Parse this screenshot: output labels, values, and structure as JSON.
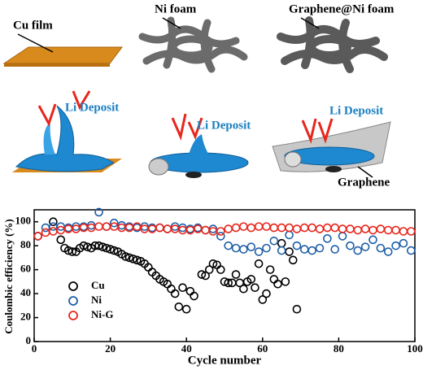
{
  "illustration": {
    "labels": [
      "Cu film",
      "Ni foam",
      "Graphene@Ni foam",
      "Li Deposit",
      "Li Deposit",
      "Li Deposit",
      "Graphene"
    ]
  },
  "chart_data": {
    "type": "scatter",
    "xlabel": "Cycle number",
    "ylabel": "Coulombic efficiency (%)",
    "xlim": [
      0,
      100
    ],
    "ylim": [
      0,
      110
    ],
    "xticks": [
      0,
      20,
      40,
      60,
      80,
      100
    ],
    "yticks": [
      0,
      20,
      40,
      60,
      80,
      100
    ],
    "legend": "lower-left",
    "series": [
      {
        "name": "Cu",
        "color": "#000000",
        "x": [
          1,
          5,
          7,
          8,
          9,
          10,
          11,
          12,
          13,
          14,
          15,
          16,
          17,
          18,
          19,
          20,
          21,
          22,
          23,
          24,
          25,
          26,
          27,
          28,
          29,
          30,
          31,
          32,
          33,
          34,
          35,
          36,
          37,
          38,
          39,
          40,
          41,
          42,
          44,
          45,
          46,
          47,
          48,
          49,
          50,
          51,
          52,
          53,
          54,
          55,
          56,
          57,
          58,
          59,
          60,
          61,
          62,
          63,
          64,
          65,
          66,
          67,
          68,
          69
        ],
        "values": [
          88,
          100,
          85,
          78,
          76,
          75,
          75,
          78,
          80,
          79,
          78,
          80,
          80,
          79,
          78,
          77,
          76,
          75,
          73,
          71,
          70,
          69,
          68,
          67,
          65,
          62,
          58,
          55,
          52,
          50,
          48,
          44,
          40,
          29,
          45,
          27,
          42,
          38,
          56,
          55,
          60,
          65,
          64,
          60,
          50,
          49,
          49,
          56,
          49,
          44,
          50,
          52,
          45,
          65,
          35,
          40,
          60,
          52,
          48,
          82,
          50,
          75,
          68,
          27
        ]
      },
      {
        "name": "Ni",
        "color": "#1f5fa8",
        "x": [
          1,
          3,
          5,
          7,
          9,
          11,
          13,
          15,
          17,
          19,
          21,
          23,
          25,
          27,
          29,
          31,
          33,
          35,
          37,
          39,
          41,
          43,
          45,
          47,
          49,
          51,
          53,
          55,
          57,
          59,
          61,
          63,
          65,
          67,
          69,
          71,
          73,
          75,
          77,
          79,
          81,
          83,
          85,
          87,
          89,
          91,
          93,
          95,
          97,
          99
        ],
        "values": [
          88,
          95,
          96,
          96,
          95,
          96,
          96,
          97,
          108,
          96,
          99,
          97,
          96,
          95,
          96,
          95,
          95,
          94,
          96,
          95,
          94,
          95,
          93,
          94,
          88,
          80,
          78,
          77,
          79,
          75,
          78,
          84,
          76,
          89,
          80,
          77,
          76,
          78,
          86,
          77,
          88,
          80,
          76,
          79,
          85,
          78,
          75,
          80,
          82,
          76
        ]
      },
      {
        "name": "Ni-G",
        "color": "#e8261c",
        "x": [
          1,
          3,
          5,
          7,
          9,
          11,
          13,
          15,
          17,
          19,
          21,
          23,
          25,
          27,
          29,
          31,
          33,
          35,
          37,
          39,
          41,
          43,
          45,
          47,
          49,
          51,
          53,
          55,
          57,
          59,
          61,
          63,
          65,
          67,
          69,
          71,
          73,
          75,
          77,
          79,
          81,
          83,
          85,
          87,
          89,
          91,
          93,
          95,
          97,
          99
        ],
        "values": [
          88,
          91,
          92,
          93,
          94,
          94,
          95,
          95,
          96,
          96,
          96,
          95,
          95,
          96,
          94,
          94,
          95,
          94,
          94,
          93,
          93,
          94,
          93,
          92,
          92,
          94,
          95,
          96,
          95,
          96,
          96,
          95,
          95,
          95,
          94,
          95,
          95,
          94,
          95,
          95,
          94,
          94,
          93,
          94,
          93,
          94,
          93,
          93,
          92,
          92
        ]
      }
    ]
  }
}
